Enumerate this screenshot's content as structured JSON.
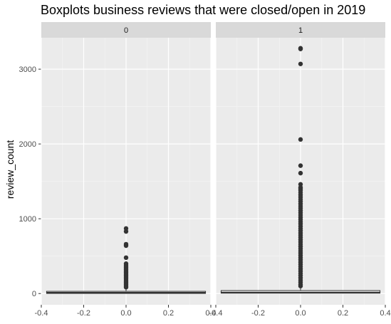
{
  "chart_data": {
    "type": "boxplot",
    "title": "Boxplots business reviews that were closed/open in 2019",
    "ylabel": "review_count",
    "xlabel": "",
    "xlim": [
      -0.4,
      0.4
    ],
    "ylim": [
      -150,
      3420
    ],
    "x_ticks": [
      -0.4,
      -0.2,
      0.0,
      0.2,
      0.4
    ],
    "x_tick_labels": [
      "-0.4",
      "-0.2",
      "0.0",
      "0.2",
      "0.4"
    ],
    "y_ticks": [
      0,
      1000,
      2000,
      3000
    ],
    "y_tick_labels": [
      "0",
      "1000",
      "2000",
      "3000"
    ],
    "grid": true,
    "facets": [
      {
        "label": "0",
        "box": {
          "x_min": -0.375,
          "x_max": 0.375,
          "q1": 5,
          "median": 12,
          "q3": 30,
          "whisker_low": 3,
          "whisker_high": 70
        },
        "outliers": [
          870,
          830,
          660,
          640,
          480,
          400,
          380,
          360,
          340,
          320,
          300,
          280,
          260,
          240,
          220,
          200,
          180,
          160,
          140,
          120,
          100,
          85
        ]
      },
      {
        "label": "1",
        "box": {
          "x_min": -0.375,
          "x_max": 0.375,
          "q1": 5,
          "median": 14,
          "q3": 40,
          "whisker_low": 3,
          "whisker_high": 90
        },
        "outliers": [
          3280,
          3270,
          3070,
          2060,
          1710,
          1610,
          1460,
          1420,
          1400,
          1380,
          1350,
          1320,
          1290,
          1260,
          1230,
          1200,
          1170,
          1140,
          1110,
          1080,
          1050,
          1020,
          990,
          960,
          930,
          900,
          870,
          840,
          810,
          780,
          750,
          720,
          690,
          660,
          630,
          600,
          570,
          540,
          510,
          480,
          450,
          420,
          390,
          360,
          330,
          300,
          270,
          240,
          210,
          180,
          150,
          120,
          100
        ]
      }
    ]
  }
}
